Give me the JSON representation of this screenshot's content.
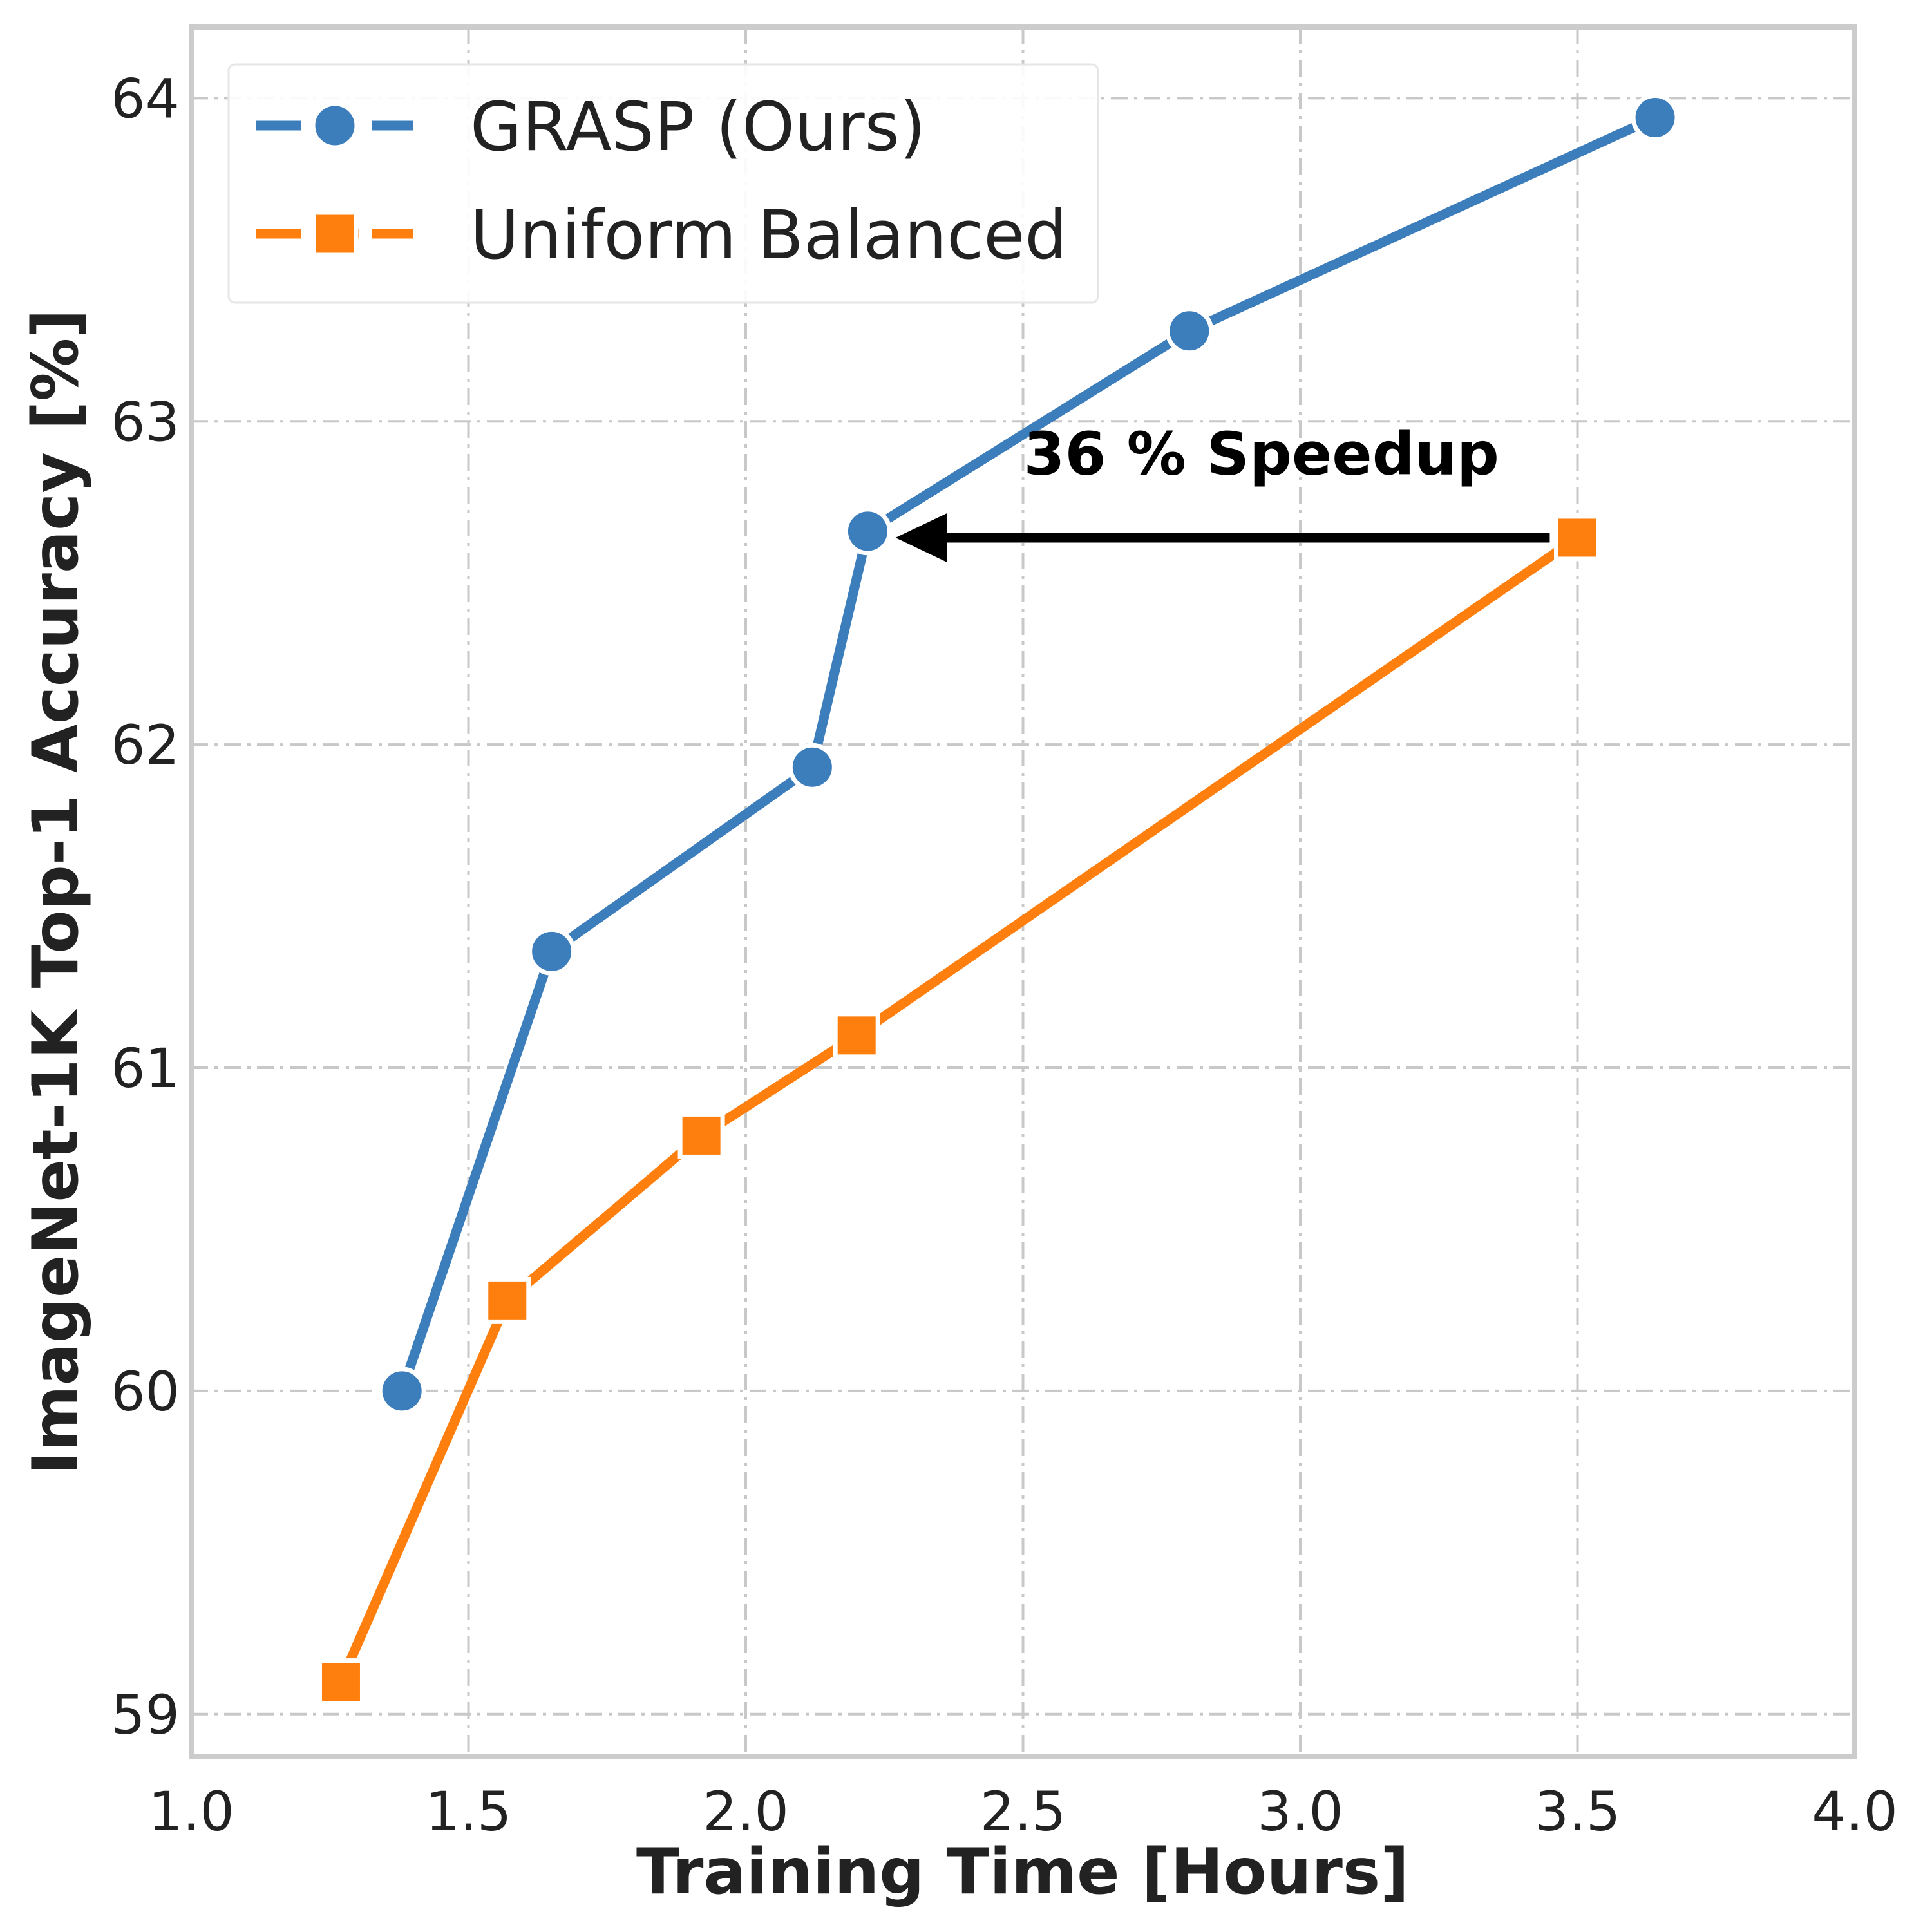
{
  "chart_data": {
    "type": "line",
    "title": "",
    "xlabel": "Training Time [Hours]",
    "ylabel": "ImageNet-1K Top-1 Accuracy [%]",
    "xlim": [
      1.0,
      4.0
    ],
    "ylim": [
      58.87,
      64.22
    ],
    "xticks": [
      "1.0",
      "1.5",
      "2.0",
      "2.5",
      "3.0",
      "3.5",
      "4.0"
    ],
    "yticks": [
      "59",
      "60",
      "61",
      "62",
      "63",
      "64"
    ],
    "grid": true,
    "legend_position": "upper-left",
    "series": [
      {
        "name": "GRASP (Ours)",
        "color": "#3c7dbb",
        "marker": "circle",
        "x": [
          1.38,
          1.65,
          2.12,
          2.22,
          2.8,
          3.64
        ],
        "y": [
          60.0,
          61.36,
          61.93,
          62.66,
          63.28,
          63.94
        ]
      },
      {
        "name": "Uniform Balanced",
        "color": "#ff7f0e",
        "marker": "square",
        "x": [
          1.27,
          1.57,
          1.92,
          2.2,
          3.5
        ],
        "y": [
          59.1,
          60.28,
          60.79,
          61.1,
          62.64
        ]
      }
    ],
    "annotations": [
      {
        "text": "36 % Speedup",
        "arrow_from": [
          3.45,
          62.64
        ],
        "arrow_to": [
          2.27,
          62.64
        ],
        "text_at": [
          2.93,
          62.9
        ]
      }
    ]
  }
}
